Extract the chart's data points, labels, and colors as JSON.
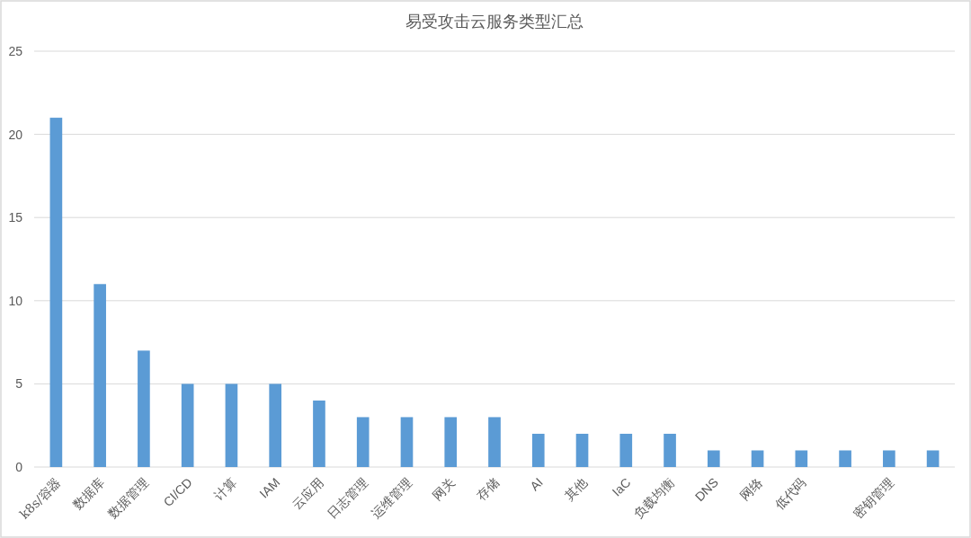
{
  "chart_data": {
    "type": "bar",
    "title": "易受攻击云服务类型汇总",
    "categories": [
      "k8s/容器",
      "数据库",
      "数据管理",
      "CI/CD",
      "计算",
      "IAM",
      "云应用",
      "日志管理",
      "运维管理",
      "网关",
      "存储",
      "AI",
      "其他",
      "IaC",
      "负载均衡",
      "DNS",
      "网络",
      "低代码",
      null,
      "密钥管理",
      null
    ],
    "values": [
      21,
      11,
      7,
      5,
      5,
      5,
      4,
      3,
      3,
      3,
      3,
      2,
      2,
      2,
      2,
      1,
      1,
      1,
      1,
      1,
      1
    ],
    "color": "#5b9bd5",
    "ylim": [
      0,
      25
    ],
    "yticks": [
      0,
      5,
      10,
      15,
      20,
      25
    ],
    "grid": "y"
  }
}
